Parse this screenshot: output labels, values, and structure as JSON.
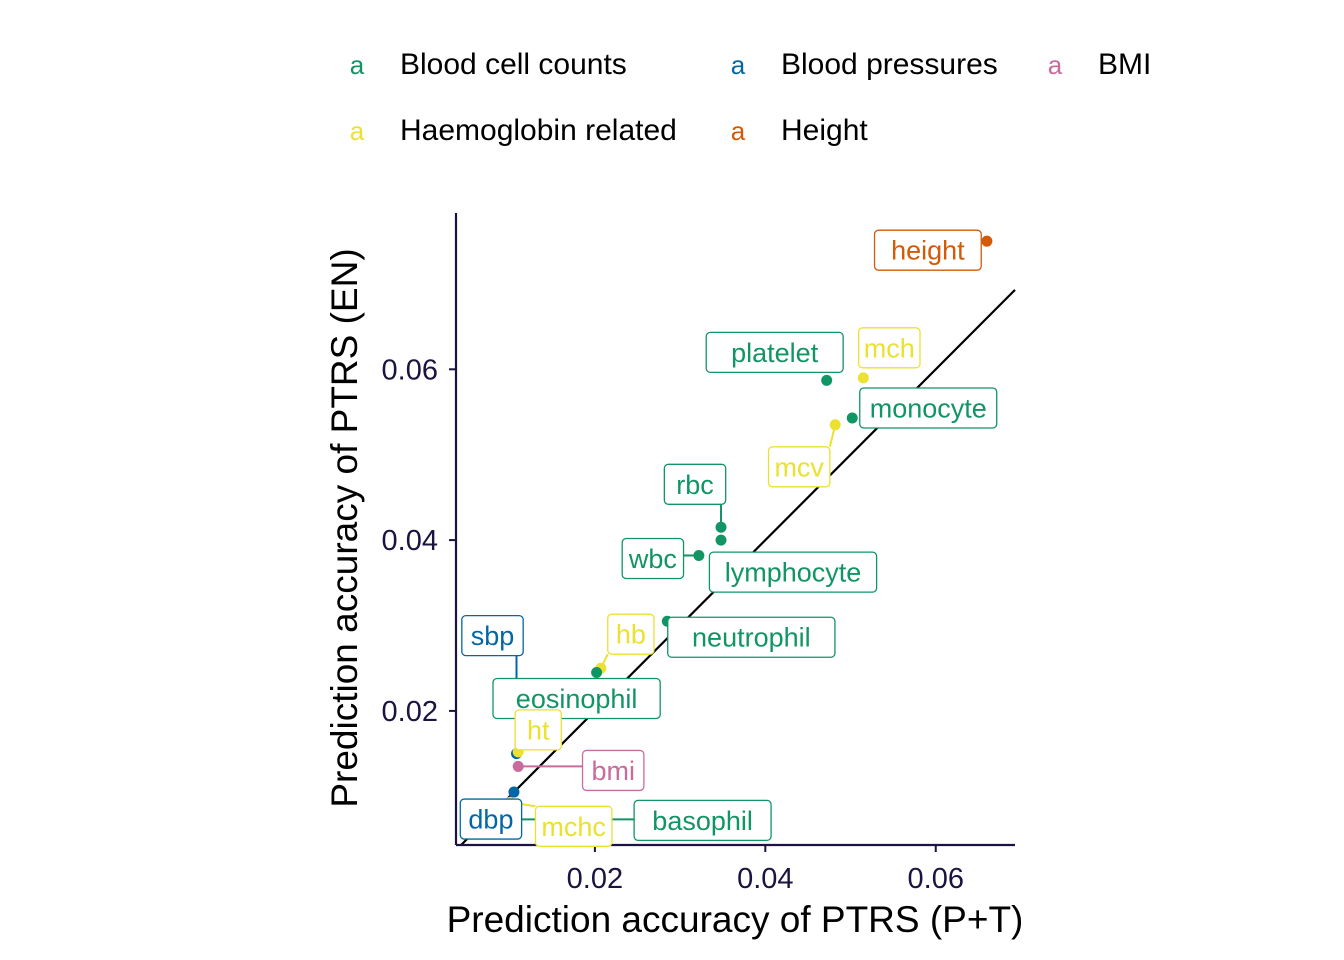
{
  "legend": {
    "key_glyph": "a",
    "items": [
      {
        "label": "Blood cell counts",
        "color": "#129565"
      },
      {
        "label": "Blood pressures",
        "color": "#0467a5"
      },
      {
        "label": "BMI",
        "color": "#c96b9d"
      },
      {
        "label": "Haemoglobin related",
        "color": "#ebe131"
      },
      {
        "label": "Height",
        "color": "#d35a08"
      }
    ]
  },
  "chart_data": {
    "type": "scatter",
    "xlabel": "Prediction accuracy of PTRS (P+T)",
    "ylabel": "Prediction accuracy of PTRS (EN)",
    "x_ticks": [
      0.02,
      0.04,
      0.06
    ],
    "y_ticks": [
      0.02,
      0.04,
      0.06
    ],
    "x_tick_labels": [
      "0.02",
      "0.04",
      "0.06"
    ],
    "y_tick_labels": [
      "0.02",
      "0.04",
      "0.06"
    ],
    "xlim": [
      0.0037,
      0.0693
    ],
    "ylim": [
      0.0043,
      0.0783
    ],
    "reference_line": "y = x",
    "grid": false,
    "legend_position": "top",
    "points": [
      {
        "label": "height",
        "group": "Height",
        "x": 0.066,
        "y": 0.075
      },
      {
        "label": "platelet",
        "group": "Blood cell counts",
        "x": 0.0472,
        "y": 0.0587
      },
      {
        "label": "mch",
        "group": "Haemoglobin related",
        "x": 0.0515,
        "y": 0.059
      },
      {
        "label": "monocyte",
        "group": "Blood cell counts",
        "x": 0.0502,
        "y": 0.0543
      },
      {
        "label": "mcv",
        "group": "Haemoglobin related",
        "x": 0.0482,
        "y": 0.0535
      },
      {
        "label": "rbc",
        "group": "Blood cell counts",
        "x": 0.0348,
        "y": 0.0415
      },
      {
        "label": "lymphocyte",
        "group": "Blood cell counts",
        "x": 0.0348,
        "y": 0.04
      },
      {
        "label": "wbc",
        "group": "Blood cell counts",
        "x": 0.0322,
        "y": 0.0382
      },
      {
        "label": "neutrophil",
        "group": "Blood cell counts",
        "x": 0.0285,
        "y": 0.0305
      },
      {
        "label": "hb",
        "group": "Haemoglobin related",
        "x": 0.0207,
        "y": 0.025
      },
      {
        "label": "eosinophil",
        "group": "Blood cell counts",
        "x": 0.0202,
        "y": 0.0245
      },
      {
        "label": "sbp",
        "group": "Blood pressures",
        "x": 0.0108,
        "y": 0.015
      },
      {
        "label": "ht",
        "group": "Haemoglobin related",
        "x": 0.011,
        "y": 0.0152
      },
      {
        "label": "bmi",
        "group": "BMI",
        "x": 0.011,
        "y": 0.0135
      },
      {
        "label": "dbp",
        "group": "Blood pressures",
        "x": 0.0105,
        "y": 0.0105
      },
      {
        "label": "mchc",
        "group": "Haemoglobin related",
        "x": 0.01,
        "y": 0.0093
      },
      {
        "label": "basophil",
        "group": "Blood cell counts",
        "x": 0.006,
        "y": 0.0073
      }
    ]
  }
}
